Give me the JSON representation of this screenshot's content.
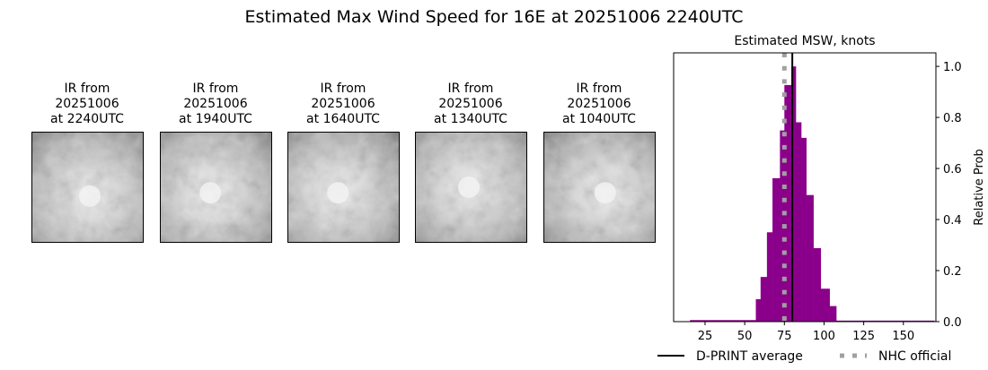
{
  "title": "Estimated Max Wind Speed for 16E at 20251006 2240UTC",
  "panels": [
    {
      "l1": "IR from",
      "l2": "20251006",
      "l3": "at 2240UTC"
    },
    {
      "l1": "IR from",
      "l2": "20251006",
      "l3": "at 1940UTC"
    },
    {
      "l1": "IR from",
      "l2": "20251006",
      "l3": "at 1640UTC"
    },
    {
      "l1": "IR from",
      "l2": "20251006",
      "l3": "at 1340UTC"
    },
    {
      "l1": "IR from",
      "l2": "20251006",
      "l3": "at 1040UTC"
    }
  ],
  "chart_data": {
    "type": "bar",
    "title": "Estimated MSW, knots",
    "ylabel": "Relative Prob",
    "xlabel": "",
    "xlim": [
      5.2,
      170.5
    ],
    "ylim": [
      0,
      1.053
    ],
    "xticks": [
      25,
      50,
      75,
      100,
      125,
      150
    ],
    "yticks": [
      "0.0",
      "0.2",
      "0.4",
      "0.6",
      "0.8",
      "1.0"
    ],
    "bar_color": "#8b008b",
    "bins": [
      {
        "left": 15.5,
        "right": 57,
        "value": 0.006
      },
      {
        "left": 57,
        "right": 60,
        "value": 0.088
      },
      {
        "left": 60,
        "right": 64,
        "value": 0.175
      },
      {
        "left": 64,
        "right": 67.5,
        "value": 0.35
      },
      {
        "left": 67.5,
        "right": 72.2,
        "value": 0.562
      },
      {
        "left": 72.2,
        "right": 75,
        "value": 0.749
      },
      {
        "left": 75,
        "right": 79.4,
        "value": 0.927
      },
      {
        "left": 79.4,
        "right": 82.2,
        "value": 1.0
      },
      {
        "left": 82.2,
        "right": 85.6,
        "value": 0.781
      },
      {
        "left": 85.6,
        "right": 88.8,
        "value": 0.72
      },
      {
        "left": 88.8,
        "right": 93.3,
        "value": 0.496
      },
      {
        "left": 93.3,
        "right": 97.9,
        "value": 0.288
      },
      {
        "left": 97.9,
        "right": 103.5,
        "value": 0.129
      },
      {
        "left": 103.5,
        "right": 107.7,
        "value": 0.061
      },
      {
        "left": 107.7,
        "right": 169.5,
        "value": 0.004
      }
    ],
    "dprint_average": 80,
    "nhc_official": 75,
    "legend": [
      {
        "label": "D-PRINT average",
        "color": "#000000",
        "style": "solid"
      },
      {
        "label": "NHC official",
        "color": "#a0a0a0",
        "style": "dotted"
      }
    ],
    "legend_placement": "bottom"
  }
}
